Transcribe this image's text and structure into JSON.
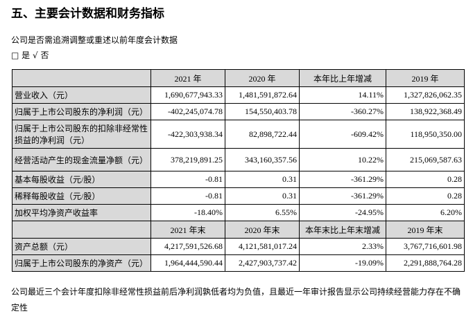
{
  "title": "五、主要会计数据和财务指标",
  "subtitle": "公司是否需追溯调整或重述以前年度会计数据",
  "options": {
    "box": "□",
    "yes": "是",
    "check": "√",
    "no": "否"
  },
  "header1": [
    "",
    "2021 年",
    "2020 年",
    "本年比上年增减",
    "2019 年"
  ],
  "rows1": [
    [
      "营业收入（元）",
      "1,690,677,943.33",
      "1,481,591,872.64",
      "14.11%",
      "1,327,826,062.35"
    ],
    [
      "归属于上市公司股东的净利润（元）",
      "-402,245,074.78",
      "154,550,403.78",
      "-360.27%",
      "138,922,368.49"
    ],
    [
      "归属于上市公司股东的扣除非经常性损益的净利润（元）",
      "-422,303,938.34",
      "82,898,722.44",
      "-609.42%",
      "118,950,350.00"
    ],
    [
      "经营活动产生的现金流量净额（元）",
      "378,219,891.25",
      "343,160,357.56",
      "10.22%",
      "215,069,587.63"
    ],
    [
      "基本每股收益（元/股）",
      "-0.81",
      "0.31",
      "-361.29%",
      "0.28"
    ],
    [
      "稀释每股收益（元/股）",
      "-0.81",
      "0.31",
      "-361.29%",
      "0.28"
    ],
    [
      "加权平均净资产收益率",
      "-18.40%",
      "6.55%",
      "-24.95%",
      "6.20%"
    ]
  ],
  "header2": [
    "",
    "2021 年末",
    "2020 年末",
    "本年末比上年末增减",
    "2019 年末"
  ],
  "rows2": [
    [
      "资产总额（元）",
      "4,217,591,526.68",
      "4,121,581,017.24",
      "2.33%",
      "3,767,716,601.98"
    ],
    [
      "归属于上市公司股东的净资产（元）",
      "1,964,444,590.44",
      "2,427,903,737.42",
      "-19.09%",
      "2,291,888,764.28"
    ]
  ],
  "note": "公司最近三个会计年度扣除非经常性损益前后净利润孰低者均为负值，且最近一年审计报告显示公司持续经营能力存在不确定性"
}
